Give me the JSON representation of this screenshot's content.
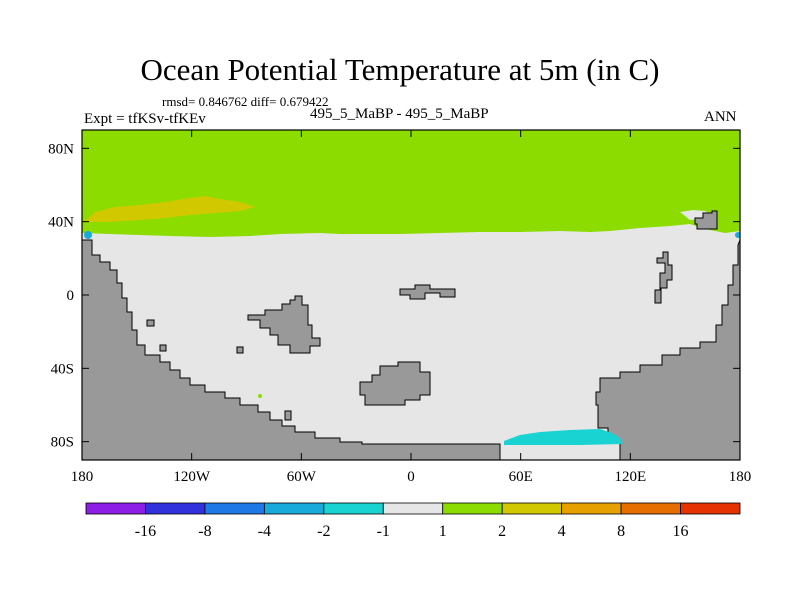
{
  "chart_data": {
    "type": "heatmap",
    "title": "Ocean Potential Temperature at 5m (in C)",
    "stats_label": "rmsd= 0.846762 diff= 0.679422",
    "rmsd": 0.846762,
    "diff": 0.679422,
    "experiment_label": "Expt = tfKSv-tfKEv",
    "case_label": "495_5_MaBP - 495_5_MaBP",
    "season": "ANN",
    "xlim": [
      -180,
      180
    ],
    "ylim": [
      -90,
      90
    ],
    "xticks": [
      -180,
      -120,
      -60,
      0,
      60,
      120,
      180
    ],
    "xtick_labels": [
      "180",
      "120W",
      "60W",
      "0",
      "60E",
      "120E",
      "180"
    ],
    "yticks": [
      80,
      40,
      0,
      -40,
      -80
    ],
    "ytick_labels": [
      "80N",
      "40N",
      "0",
      "40S",
      "80S"
    ],
    "legend": {
      "placement": "bottom",
      "labels": [
        "-16",
        "-8",
        "-4",
        "-2",
        "-1",
        "1",
        "2",
        "4",
        "8",
        "16"
      ],
      "colors": [
        "#8c1ee6",
        "#3232dc",
        "#1e78e6",
        "#19aadc",
        "#19d2d2",
        "#e6e6e6",
        "#8cdc00",
        "#d2c800",
        "#e6a000",
        "#e66e00",
        "#e63200"
      ]
    },
    "land_color": "#999999",
    "field_regions": [
      {
        "name": "northern-ocean",
        "value_range": "1 to 2",
        "color": "#8cdc00"
      },
      {
        "name": "north-pacific-band",
        "value_range": "2 to 4",
        "color": "#d2c800"
      },
      {
        "name": "central-ocean",
        "value_range": "-1 to 1",
        "color": "#e6e6e6"
      },
      {
        "name": "southern-ocean-patch",
        "value_range": "-2 to -1",
        "color": "#19d2d2"
      }
    ]
  }
}
